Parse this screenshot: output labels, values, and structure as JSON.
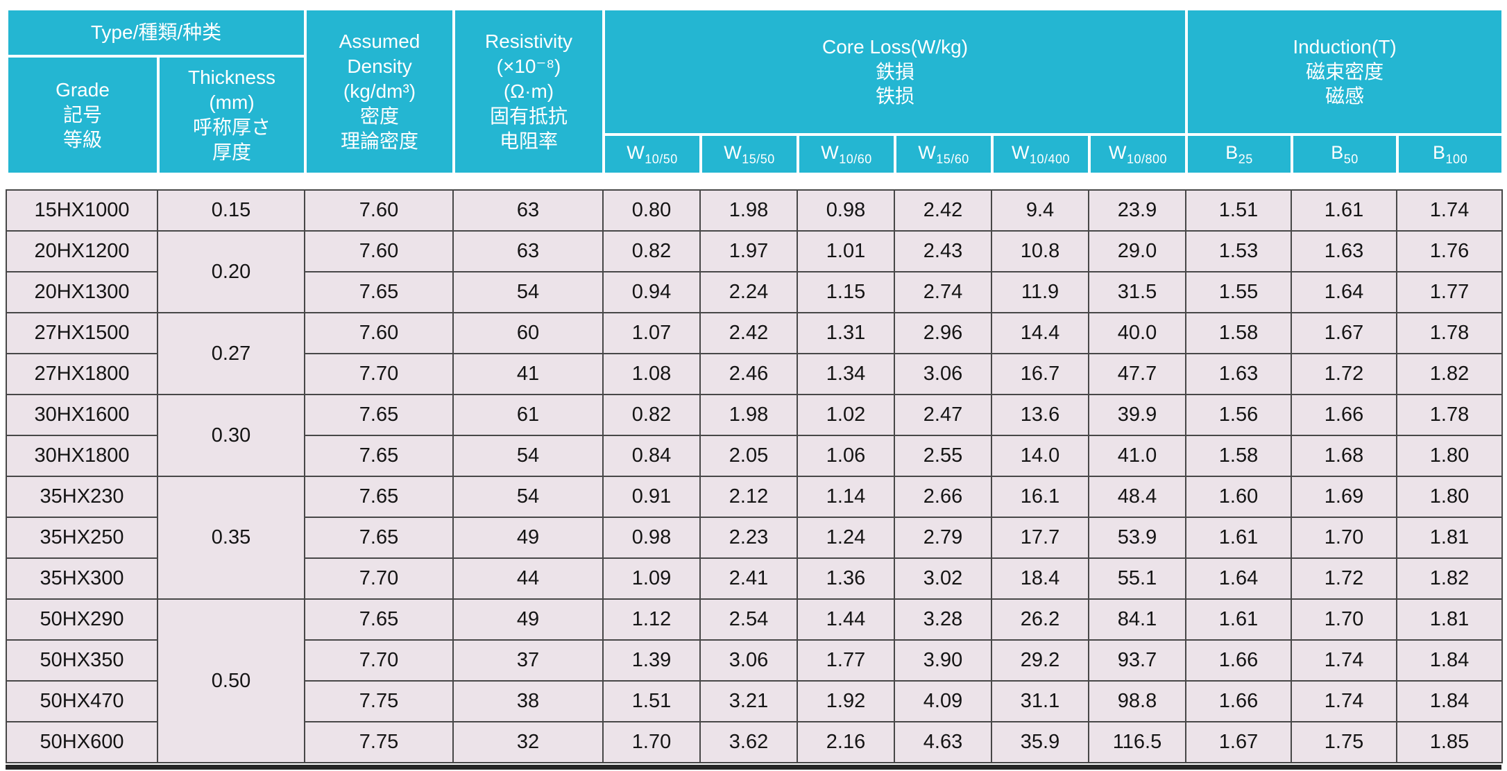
{
  "table": {
    "header": {
      "type_group": "Type/種類/种类",
      "grade": "Grade\n記号\n等級",
      "thickness": "Thickness\n(mm)\n呼称厚さ\n厚度",
      "density": "Assumed\nDensity\n(kg/dm³)\n密度\n理論密度",
      "resistivity": "Resistivity\n(×10⁻⁸)\n(Ω·m)\n固有抵抗\n电阻率",
      "core_loss_group": "Core Loss(W/kg)\n鉄損\n铁损",
      "induction_group": "Induction(T)\n磁束密度\n磁感",
      "core_loss_subcols": [
        {
          "base": "W",
          "sub": "10/50"
        },
        {
          "base": "W",
          "sub": "15/50"
        },
        {
          "base": "W",
          "sub": "10/60"
        },
        {
          "base": "W",
          "sub": "15/60"
        },
        {
          "base": "W",
          "sub": "10/400"
        },
        {
          "base": "W",
          "sub": "10/800"
        }
      ],
      "induction_subcols": [
        {
          "base": "B",
          "sub": "25"
        },
        {
          "base": "B",
          "sub": "50"
        },
        {
          "base": "B",
          "sub": "100"
        }
      ]
    },
    "thickness_groups": [
      {
        "value": "0.15",
        "rows": 1
      },
      {
        "value": "0.20",
        "rows": 2
      },
      {
        "value": "0.27",
        "rows": 2
      },
      {
        "value": "0.30",
        "rows": 2
      },
      {
        "value": "0.35",
        "rows": 3
      },
      {
        "value": "0.50",
        "rows": 4
      }
    ],
    "rows": [
      {
        "grade": "15HX1000",
        "density": "7.60",
        "resistivity": "63",
        "core_loss": [
          "0.80",
          "1.98",
          "0.98",
          "2.42",
          "9.4",
          "23.9"
        ],
        "induction": [
          "1.51",
          "1.61",
          "1.74"
        ]
      },
      {
        "grade": "20HX1200",
        "density": "7.60",
        "resistivity": "63",
        "core_loss": [
          "0.82",
          "1.97",
          "1.01",
          "2.43",
          "10.8",
          "29.0"
        ],
        "induction": [
          "1.53",
          "1.63",
          "1.76"
        ]
      },
      {
        "grade": "20HX1300",
        "density": "7.65",
        "resistivity": "54",
        "core_loss": [
          "0.94",
          "2.24",
          "1.15",
          "2.74",
          "11.9",
          "31.5"
        ],
        "induction": [
          "1.55",
          "1.64",
          "1.77"
        ]
      },
      {
        "grade": "27HX1500",
        "density": "7.60",
        "resistivity": "60",
        "core_loss": [
          "1.07",
          "2.42",
          "1.31",
          "2.96",
          "14.4",
          "40.0"
        ],
        "induction": [
          "1.58",
          "1.67",
          "1.78"
        ]
      },
      {
        "grade": "27HX1800",
        "density": "7.70",
        "resistivity": "41",
        "core_loss": [
          "1.08",
          "2.46",
          "1.34",
          "3.06",
          "16.7",
          "47.7"
        ],
        "induction": [
          "1.63",
          "1.72",
          "1.82"
        ]
      },
      {
        "grade": "30HX1600",
        "density": "7.65",
        "resistivity": "61",
        "core_loss": [
          "0.82",
          "1.98",
          "1.02",
          "2.47",
          "13.6",
          "39.9"
        ],
        "induction": [
          "1.56",
          "1.66",
          "1.78"
        ]
      },
      {
        "grade": "30HX1800",
        "density": "7.65",
        "resistivity": "54",
        "core_loss": [
          "0.84",
          "2.05",
          "1.06",
          "2.55",
          "14.0",
          "41.0"
        ],
        "induction": [
          "1.58",
          "1.68",
          "1.80"
        ]
      },
      {
        "grade": "35HX230",
        "density": "7.65",
        "resistivity": "54",
        "core_loss": [
          "0.91",
          "2.12",
          "1.14",
          "2.66",
          "16.1",
          "48.4"
        ],
        "induction": [
          "1.60",
          "1.69",
          "1.80"
        ]
      },
      {
        "grade": "35HX250",
        "density": "7.65",
        "resistivity": "49",
        "core_loss": [
          "0.98",
          "2.23",
          "1.24",
          "2.79",
          "17.7",
          "53.9"
        ],
        "induction": [
          "1.61",
          "1.70",
          "1.81"
        ]
      },
      {
        "grade": "35HX300",
        "density": "7.70",
        "resistivity": "44",
        "core_loss": [
          "1.09",
          "2.41",
          "1.36",
          "3.02",
          "18.4",
          "55.1"
        ],
        "induction": [
          "1.64",
          "1.72",
          "1.82"
        ]
      },
      {
        "grade": "50HX290",
        "density": "7.65",
        "resistivity": "49",
        "core_loss": [
          "1.12",
          "2.54",
          "1.44",
          "3.28",
          "26.2",
          "84.1"
        ],
        "induction": [
          "1.61",
          "1.70",
          "1.81"
        ]
      },
      {
        "grade": "50HX350",
        "density": "7.70",
        "resistivity": "37",
        "core_loss": [
          "1.39",
          "3.06",
          "1.77",
          "3.90",
          "29.2",
          "93.7"
        ],
        "induction": [
          "1.66",
          "1.74",
          "1.84"
        ]
      },
      {
        "grade": "50HX470",
        "density": "7.75",
        "resistivity": "38",
        "core_loss": [
          "1.51",
          "3.21",
          "1.92",
          "4.09",
          "31.1",
          "98.8"
        ],
        "induction": [
          "1.66",
          "1.74",
          "1.84"
        ]
      },
      {
        "grade": "50HX600",
        "density": "7.75",
        "resistivity": "32",
        "core_loss": [
          "1.70",
          "3.62",
          "2.16",
          "4.63",
          "35.9",
          "116.5"
        ],
        "induction": [
          "1.67",
          "1.75",
          "1.85"
        ]
      }
    ]
  },
  "colors": {
    "header_bg": "#24b6d2",
    "header_text": "#ffffff",
    "body_bg": "#ece3e9",
    "grid": "#474747",
    "bottom_rule": "#262626"
  }
}
